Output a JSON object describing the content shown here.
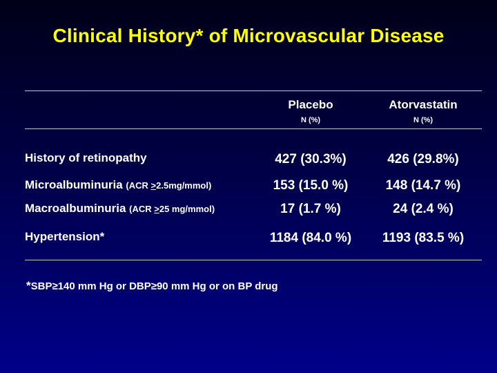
{
  "slide": {
    "title": "Clinical History* of Microvascular Disease",
    "columns": [
      {
        "name": "Placebo",
        "sub": "N  (%)"
      },
      {
        "name": "Atorvastatin",
        "sub": "N (%)"
      }
    ],
    "rows": [
      {
        "label": "History of retinopathy",
        "paren_prefix": "",
        "paren_symbol": "",
        "paren_suffix": "",
        "placebo": "427 (30.3%)",
        "atorvastatin": "426 (29.8%)"
      },
      {
        "label": "Microalbuminuria ",
        "paren_prefix": "(ACR ",
        "paren_symbol": ">",
        "paren_suffix": "2.5mg/mmol)",
        "placebo": "153 (15.0 %)",
        "atorvastatin": "148 (14.7 %)"
      },
      {
        "label": "Macroalbuminuria ",
        "paren_prefix": "(ACR ",
        "paren_symbol": ">",
        "paren_suffix": "25 mg/mmol)",
        "placebo": "17 (1.7 %)",
        "atorvastatin": "24 (2.4 %)"
      },
      {
        "label": "Hypertension*",
        "paren_prefix": "",
        "paren_symbol": "",
        "paren_suffix": "",
        "placebo": "1184 (84.0 %)",
        "atorvastatin": "1193 (83.5 %)"
      }
    ],
    "footnote": {
      "star": "*",
      "text": "SBP≥140 mm Hg or DBP≥90 mm Hg or on BP drug"
    }
  }
}
